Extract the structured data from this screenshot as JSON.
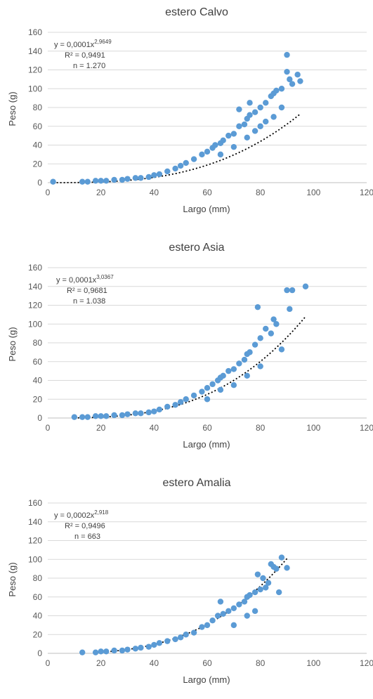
{
  "chart_data": [
    {
      "type": "scatter",
      "title": "estero Calvo",
      "xlabel": "Largo (mm)",
      "ylabel": "Peso (g)",
      "xlim": [
        0,
        120
      ],
      "ylim": [
        0,
        160
      ],
      "x_ticks": [
        0,
        20,
        40,
        60,
        80,
        100,
        120
      ],
      "y_ticks": [
        0,
        20,
        40,
        60,
        80,
        100,
        120,
        140,
        160
      ],
      "grid": "horizontal",
      "point_color": "#5b9bd5",
      "trendline": {
        "type": "power",
        "a": 0.0001,
        "b": 2.9649,
        "x_range": [
          2,
          95
        ]
      },
      "annotation": {
        "equation_base": "y = 0,0001x",
        "equation_exponent": "2,9649",
        "r2": "R² = 0,9491",
        "n": "n = 1.270"
      },
      "x": [
        2,
        13,
        15,
        18,
        20,
        22,
        25,
        28,
        30,
        33,
        35,
        38,
        40,
        42,
        45,
        48,
        50,
        52,
        55,
        58,
        60,
        62,
        63,
        65,
        66,
        68,
        70,
        72,
        74,
        75,
        76,
        78,
        80,
        82,
        84,
        85,
        86,
        88,
        90,
        91,
        92,
        94,
        95,
        65,
        70,
        75,
        78,
        80,
        82,
        85,
        88,
        90,
        72,
        76
      ],
      "y": [
        1,
        1,
        1,
        2,
        2,
        2,
        3,
        3,
        4,
        5,
        5,
        6,
        8,
        9,
        12,
        15,
        18,
        21,
        25,
        30,
        33,
        37,
        40,
        42,
        45,
        50,
        52,
        60,
        62,
        68,
        72,
        75,
        80,
        85,
        92,
        95,
        98,
        100,
        118,
        110,
        105,
        115,
        108,
        30,
        38,
        48,
        55,
        60,
        65,
        70,
        80,
        136,
        78,
        85
      ]
    },
    {
      "type": "scatter",
      "title": "estero Asia",
      "xlabel": "Largo (mm)",
      "ylabel": "Peso (g)",
      "xlim": [
        0,
        120
      ],
      "ylim": [
        0,
        160
      ],
      "x_ticks": [
        0,
        20,
        40,
        60,
        80,
        100,
        120
      ],
      "y_ticks": [
        0,
        20,
        40,
        60,
        80,
        100,
        120,
        140,
        160
      ],
      "grid": "horizontal",
      "point_color": "#5b9bd5",
      "trendline": {
        "type": "power",
        "a": 0.0001,
        "b": 3.0367,
        "x_range": [
          10,
          97
        ]
      },
      "annotation": {
        "equation_base": "y = 0,0001x",
        "equation_exponent": "3,0367",
        "r2": "R² = 0,9681",
        "n": "n = 1.038"
      },
      "x": [
        10,
        13,
        15,
        18,
        20,
        22,
        25,
        28,
        30,
        33,
        35,
        38,
        40,
        42,
        45,
        48,
        50,
        52,
        55,
        58,
        60,
        62,
        64,
        65,
        66,
        68,
        70,
        72,
        74,
        75,
        76,
        78,
        79,
        80,
        82,
        84,
        85,
        86,
        88,
        90,
        92,
        97,
        91,
        70,
        75,
        80,
        60,
        65
      ],
      "y": [
        1,
        1,
        1,
        2,
        2,
        2,
        3,
        3,
        4,
        5,
        5,
        6,
        7,
        9,
        12,
        14,
        17,
        20,
        24,
        28,
        32,
        36,
        40,
        43,
        45,
        50,
        52,
        58,
        62,
        68,
        70,
        78,
        118,
        85,
        95,
        90,
        105,
        100,
        73,
        136,
        136,
        140,
        116,
        35,
        45,
        55,
        20,
        30
      ]
    },
    {
      "type": "scatter",
      "title": "estero Amalia",
      "xlabel": "Largo (mm)",
      "ylabel": "Peso (g)",
      "xlim": [
        0,
        120
      ],
      "ylim": [
        0,
        160
      ],
      "x_ticks": [
        0,
        20,
        40,
        60,
        80,
        100,
        120
      ],
      "y_ticks": [
        0,
        20,
        40,
        60,
        80,
        100,
        120,
        140,
        160
      ],
      "grid": "horizontal",
      "point_color": "#5b9bd5",
      "trendline": {
        "type": "power",
        "a": 0.0002,
        "b": 2.918,
        "x_range": [
          17,
          90
        ]
      },
      "annotation": {
        "equation_base": "y = 0,0002x",
        "equation_exponent": "2,918",
        "r2": "R² = 0,9496",
        "n": "n = 663"
      },
      "x": [
        13,
        18,
        20,
        22,
        25,
        28,
        30,
        33,
        35,
        38,
        40,
        42,
        45,
        48,
        50,
        52,
        55,
        58,
        60,
        62,
        64,
        65,
        66,
        68,
        70,
        72,
        74,
        75,
        76,
        78,
        79,
        80,
        81,
        82,
        83,
        84,
        85,
        86,
        87,
        88,
        90,
        70,
        75,
        78
      ],
      "y": [
        1,
        1,
        2,
        2,
        3,
        3,
        4,
        5,
        6,
        7,
        9,
        11,
        13,
        15,
        17,
        20,
        22,
        28,
        30,
        35,
        40,
        55,
        42,
        45,
        48,
        52,
        55,
        60,
        62,
        65,
        84,
        68,
        80,
        70,
        75,
        95,
        92,
        90,
        65,
        102,
        91,
        30,
        40,
        45
      ]
    }
  ]
}
